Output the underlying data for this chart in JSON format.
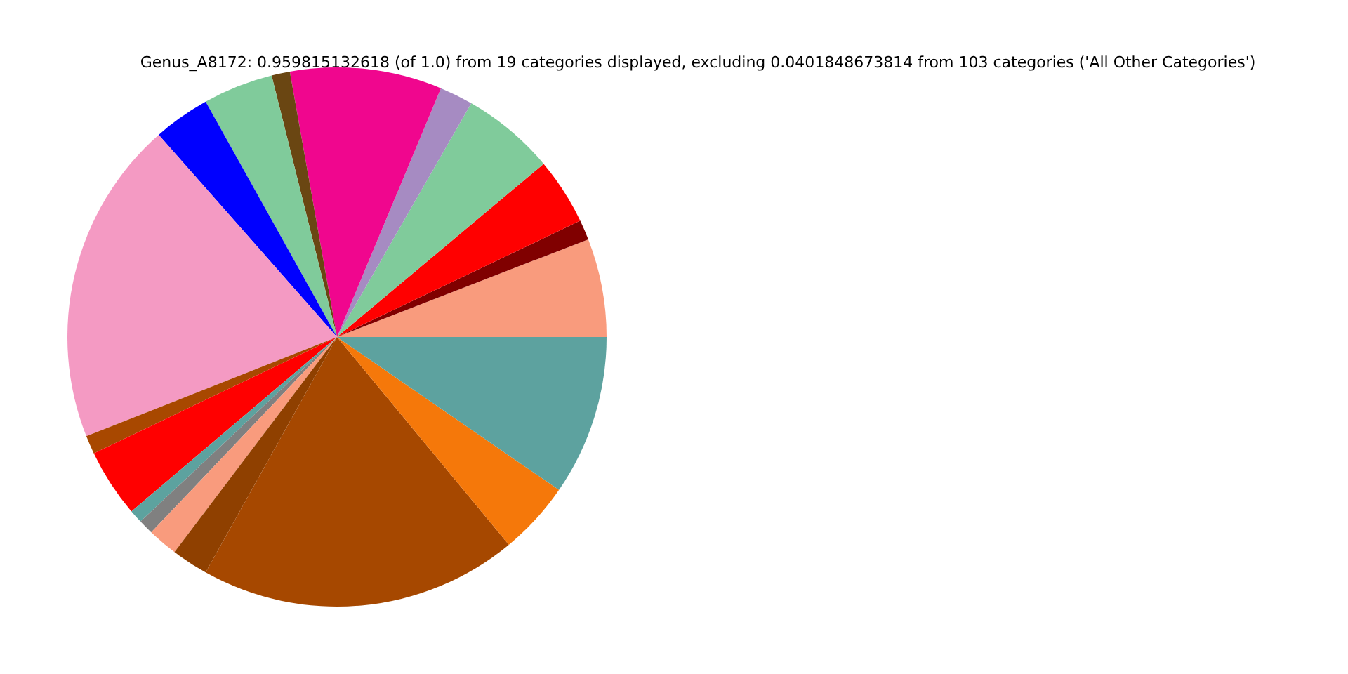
{
  "chart_data": {
    "type": "pie",
    "title": "Genus_A8172: 0.959815132618 (of 1.0) from 19 categories displayed, excluding 0.0401848673814 from 103 categories ('All Other Categories')",
    "categories": [
      null,
      null,
      null,
      null,
      null,
      null,
      null,
      null,
      null,
      null,
      null,
      null,
      null,
      null,
      null,
      null,
      null,
      null,
      null
    ],
    "values": [
      5.9,
      1.2,
      4.0,
      5.6,
      2.0,
      9.1,
      1.1,
      4.2,
      3.4,
      19.5,
      1.1,
      4.1,
      0.8,
      0.9,
      1.8,
      2.2,
      19.1,
      4.4,
      9.6
    ],
    "colors": [
      "#f99b7d",
      "#800000",
      "#ff0000",
      "#80cb9b",
      "#a68bc2",
      "#f0068e",
      "#6a4612",
      "#80cb9b",
      "#0000ff",
      "#f49ac3",
      "#a84800",
      "#ff0000",
      "#5da29f",
      "#808080",
      "#f99b7d",
      "#8f4000",
      "#a64800",
      "#f5780a",
      "#5da29f"
    ]
  }
}
